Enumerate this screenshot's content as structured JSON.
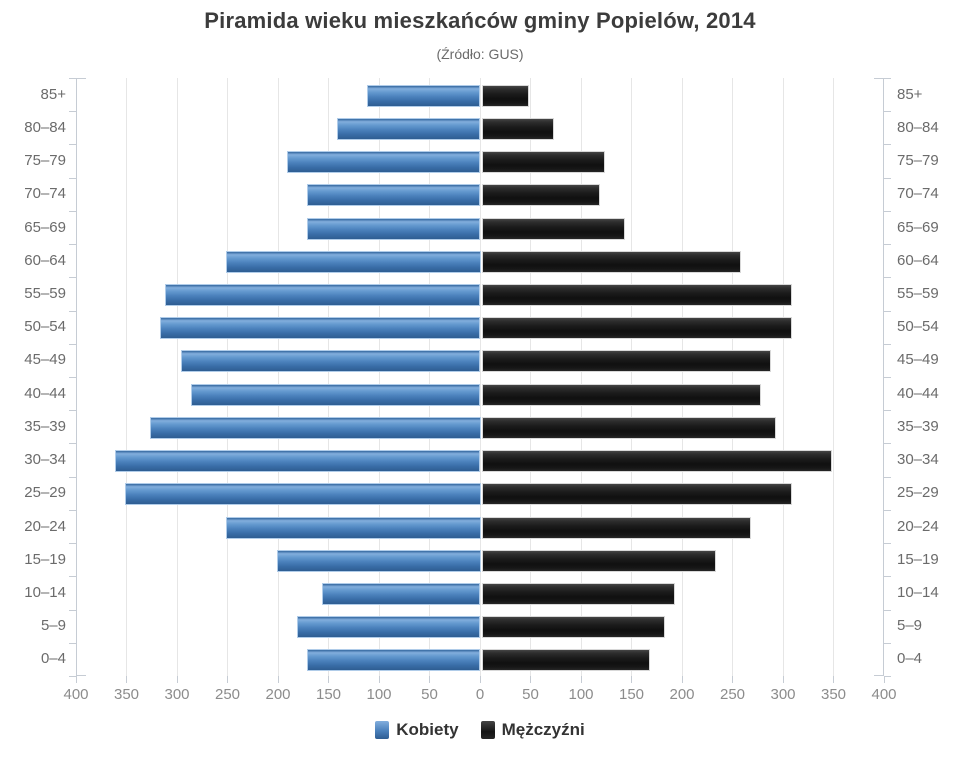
{
  "title": "Piramida wieku mieszkańców gminy Popielów, 2014",
  "subtitle": "(Źródło: GUS)",
  "colors": {
    "female_bar": "#4a80ba",
    "male_bar": "#1a1a1a",
    "gridline": "#e6e6e6",
    "axis": "#c6ccd4",
    "age_label": "#6b6b6b",
    "tick_label": "#8c8c8c",
    "title_text": "#3c3c3c"
  },
  "legend": {
    "items": [
      {
        "label": "Kobiety",
        "color": "#4a80ba"
      },
      {
        "label": "Mężczyźni",
        "color": "#1a1a1a"
      }
    ]
  },
  "chart_data": {
    "type": "bar",
    "subtype": "population-pyramid",
    "title": "Piramida wieku mieszkańców gminy Popielów, 2014",
    "subtitle": "(Źródło: GUS)",
    "orientation": "horizontal",
    "grid": true,
    "legend_position": "bottom",
    "categories_top_down": [
      "85+",
      "80–84",
      "75–79",
      "70–74",
      "65–69",
      "60–64",
      "55–59",
      "50–54",
      "45–49",
      "40–44",
      "35–39",
      "30–34",
      "25–29",
      "20–24",
      "15–19",
      "10–14",
      "5–9",
      "0–4"
    ],
    "series": [
      {
        "name": "Kobiety",
        "side": "left",
        "color": "#4a80ba",
        "values_top_down": [
          110,
          140,
          190,
          170,
          170,
          250,
          310,
          315,
          295,
          285,
          325,
          360,
          350,
          250,
          200,
          155,
          180,
          170
        ]
      },
      {
        "name": "Mężczyźni",
        "side": "right",
        "color": "#1a1a1a",
        "values_top_down": [
          45,
          70,
          120,
          115,
          140,
          255,
          305,
          305,
          285,
          275,
          290,
          345,
          305,
          265,
          230,
          190,
          180,
          165
        ]
      }
    ],
    "x_axis": {
      "limit_each_side": 400,
      "tick_step": 50,
      "tick_labels": [
        "400",
        "350",
        "300",
        "250",
        "200",
        "150",
        "100",
        "50",
        "0",
        "50",
        "100",
        "150",
        "200",
        "250",
        "300",
        "350",
        "400"
      ]
    }
  }
}
